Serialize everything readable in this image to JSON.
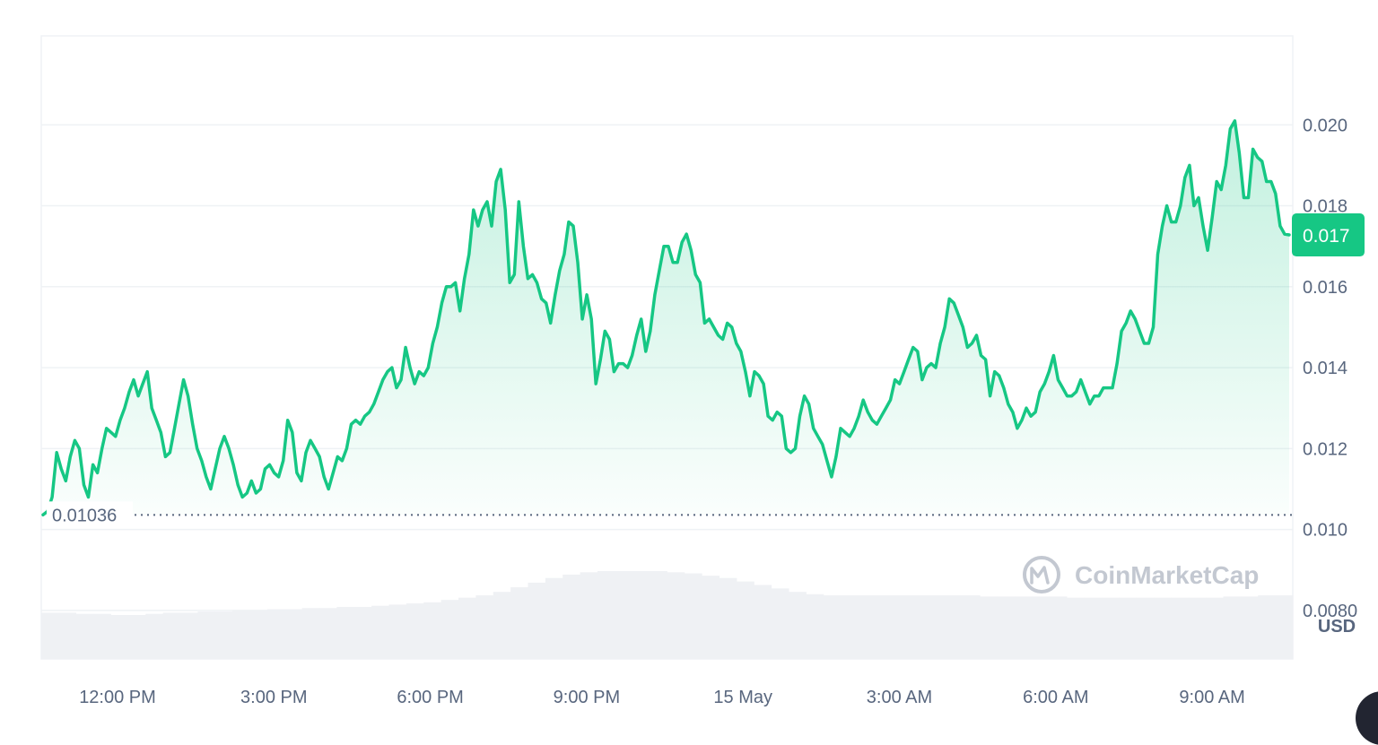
{
  "chart_data": {
    "type": "area",
    "currency": "USD",
    "y_ticks": [
      0.008,
      0.01,
      0.012,
      0.014,
      0.016,
      0.018,
      0.02
    ],
    "y_tick_labels": [
      "0.0080",
      "0.010",
      "0.012",
      "0.014",
      "0.016",
      "0.018",
      "0.020"
    ],
    "ylim": [
      0.0068,
      0.0222
    ],
    "x_tick_labels": [
      "12:00 PM",
      "3:00 PM",
      "6:00 PM",
      "9:00 PM",
      "15 May",
      "3:00 AM",
      "6:00 AM",
      "9:00 AM"
    ],
    "reference_line": {
      "label": "0.01036",
      "value": 0.01036
    },
    "current_price": {
      "label": "0.017",
      "value": 0.01728
    },
    "series": [
      {
        "values": [
          0.01036,
          0.01045,
          0.0108,
          0.0119,
          0.0115,
          0.0112,
          0.0118,
          0.0122,
          0.012,
          0.0111,
          0.0108,
          0.0116,
          0.0114,
          0.012,
          0.0125,
          0.0124,
          0.0123,
          0.0127,
          0.013,
          0.0134,
          0.0137,
          0.0133,
          0.0136,
          0.0139,
          0.013,
          0.0127,
          0.0124,
          0.0118,
          0.0119,
          0.0125,
          0.0131,
          0.0137,
          0.0133,
          0.0126,
          0.012,
          0.0117,
          0.0113,
          0.011,
          0.0115,
          0.012,
          0.0123,
          0.012,
          0.0116,
          0.0111,
          0.0108,
          0.0109,
          0.0112,
          0.0109,
          0.011,
          0.0115,
          0.0116,
          0.0114,
          0.0113,
          0.0117,
          0.0127,
          0.0124,
          0.0114,
          0.0112,
          0.0119,
          0.0122,
          0.012,
          0.0118,
          0.0113,
          0.011,
          0.0114,
          0.0118,
          0.0117,
          0.012,
          0.0126,
          0.0127,
          0.0126,
          0.0128,
          0.0129,
          0.0131,
          0.0134,
          0.0137,
          0.0139,
          0.014,
          0.0135,
          0.0137,
          0.0145,
          0.014,
          0.0136,
          0.0139,
          0.0138,
          0.014,
          0.0146,
          0.015,
          0.0156,
          0.016,
          0.016,
          0.0161,
          0.0154,
          0.0162,
          0.0168,
          0.0179,
          0.0175,
          0.0179,
          0.0181,
          0.0175,
          0.0186,
          0.0189,
          0.0179,
          0.0161,
          0.0163,
          0.0181,
          0.017,
          0.0162,
          0.0163,
          0.0161,
          0.0157,
          0.0156,
          0.0151,
          0.0158,
          0.0164,
          0.0168,
          0.0176,
          0.0175,
          0.0166,
          0.0152,
          0.0158,
          0.0152,
          0.0136,
          0.0142,
          0.0149,
          0.0147,
          0.0139,
          0.0141,
          0.0141,
          0.014,
          0.0143,
          0.0148,
          0.0152,
          0.0144,
          0.0149,
          0.0158,
          0.0164,
          0.017,
          0.017,
          0.0166,
          0.0166,
          0.0171,
          0.0173,
          0.0169,
          0.0163,
          0.0161,
          0.0151,
          0.0152,
          0.015,
          0.0148,
          0.0147,
          0.0151,
          0.015,
          0.0146,
          0.0144,
          0.0139,
          0.0133,
          0.0139,
          0.0138,
          0.0136,
          0.0128,
          0.0127,
          0.0129,
          0.0128,
          0.012,
          0.0119,
          0.012,
          0.0128,
          0.0133,
          0.0131,
          0.0125,
          0.0123,
          0.0121,
          0.0117,
          0.0113,
          0.0118,
          0.0125,
          0.0124,
          0.0123,
          0.0125,
          0.0128,
          0.0132,
          0.0129,
          0.0127,
          0.0126,
          0.0128,
          0.013,
          0.0132,
          0.0137,
          0.0136,
          0.0139,
          0.0142,
          0.0145,
          0.0144,
          0.0137,
          0.014,
          0.0141,
          0.014,
          0.0146,
          0.015,
          0.0157,
          0.0156,
          0.0153,
          0.015,
          0.0145,
          0.0146,
          0.0148,
          0.0143,
          0.0142,
          0.0133,
          0.0139,
          0.0138,
          0.0135,
          0.0131,
          0.0129,
          0.0125,
          0.0127,
          0.013,
          0.0128,
          0.0129,
          0.0134,
          0.0136,
          0.0139,
          0.0143,
          0.0137,
          0.0135,
          0.0133,
          0.0133,
          0.0134,
          0.0137,
          0.0134,
          0.0131,
          0.0133,
          0.0133,
          0.0135,
          0.0135,
          0.0135,
          0.0141,
          0.0149,
          0.0151,
          0.0154,
          0.0152,
          0.0149,
          0.0146,
          0.0146,
          0.015,
          0.0168,
          0.0175,
          0.018,
          0.0176,
          0.0176,
          0.018,
          0.0187,
          0.019,
          0.018,
          0.0182,
          0.0175,
          0.0169,
          0.0177,
          0.0186,
          0.0184,
          0.019,
          0.0199,
          0.0201,
          0.0193,
          0.0182,
          0.0182,
          0.0194,
          0.0192,
          0.0191,
          0.0186,
          0.0186,
          0.0183,
          0.0175,
          0.0173,
          0.01728
        ]
      }
    ],
    "volume": {
      "unit": "relative",
      "values": [
        0.4,
        0.4,
        0.39,
        0.39,
        0.38,
        0.38,
        0.39,
        0.4,
        0.4,
        0.41,
        0.41,
        0.42,
        0.42,
        0.43,
        0.43,
        0.44,
        0.44,
        0.45,
        0.45,
        0.46,
        0.47,
        0.48,
        0.49,
        0.51,
        0.53,
        0.55,
        0.58,
        0.62,
        0.66,
        0.7,
        0.73,
        0.75,
        0.76,
        0.76,
        0.76,
        0.76,
        0.75,
        0.74,
        0.72,
        0.7,
        0.67,
        0.64,
        0.61,
        0.58,
        0.56,
        0.55,
        0.55,
        0.55,
        0.55,
        0.55,
        0.55,
        0.55,
        0.55,
        0.55,
        0.54,
        0.54,
        0.54,
        0.54,
        0.54,
        0.53,
        0.53,
        0.53,
        0.53,
        0.53,
        0.53,
        0.53,
        0.53,
        0.53,
        0.54,
        0.54,
        0.55,
        0.55
      ]
    },
    "grid": true,
    "legend": "none"
  },
  "watermark": {
    "brand": "CoinMarketCap"
  },
  "colors": {
    "line": "#16c784",
    "area_top": "#16c784",
    "grid": "#eff2f5",
    "axis_text": "#58667e",
    "badge_bg": "#16c784",
    "badge_text": "#ffffff",
    "volume": "#eff1f4",
    "watermark": "#c3c8d1"
  }
}
